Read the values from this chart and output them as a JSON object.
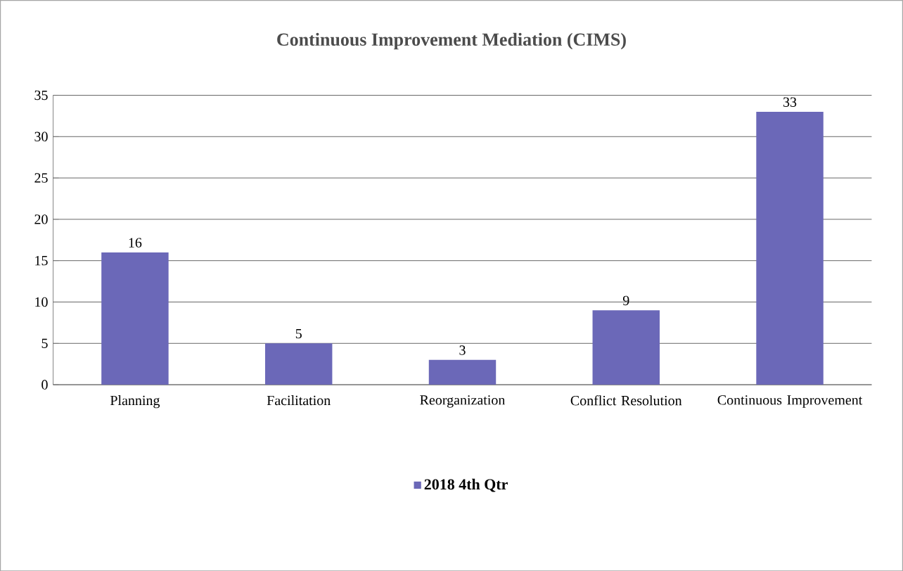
{
  "chart_data": {
    "type": "bar",
    "title": "Continuous Improvement Mediation (CIMS)",
    "categories": [
      "Planning",
      "Facilitation",
      "Reorganization",
      "Conflict Resolution",
      "Continuous Improvement"
    ],
    "series": [
      {
        "name": "2018 4th Qtr",
        "color": "#6b68b8",
        "values": [
          16,
          5,
          3,
          9,
          33
        ]
      }
    ],
    "ylim": [
      0,
      35
    ],
    "yticks": [
      0,
      5,
      10,
      15,
      20,
      25,
      30,
      35
    ],
    "grid": "y",
    "legend": "bottom",
    "data_labels": true
  }
}
